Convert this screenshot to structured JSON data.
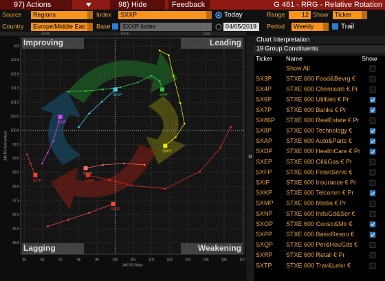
{
  "toolbar": {
    "actions": "97) Actions",
    "hide": "98) Hide",
    "feedback": "Feedback",
    "title": "G 461 - RRG - Relative Rotation"
  },
  "controls": {
    "source_label": "Source",
    "source": "Regions",
    "index_label": "Index",
    "index": "SXXP",
    "today": "Today",
    "range_label": "Range",
    "range": 12,
    "show_label": "Show",
    "show": "Ticker",
    "country_label": "Country",
    "country": "Europe/Middle Eas",
    "base_label": "Base",
    "base": "SXXP Index",
    "date": "04/05/2019",
    "period_label": "Period",
    "period": "Weekly",
    "trail": "Trail",
    "zoom": "Zoom",
    "track": "Track",
    "copy": "Copy"
  },
  "chart_data": {
    "type": "scatter",
    "quadrants": [
      "Improving",
      "Leading",
      "Lagging",
      "Weakening"
    ],
    "x_label": "JdK RS-Ratio",
    "y_label": "JdK RS-Momentum",
    "xlim": [
      94.8,
      107.1
    ],
    "ylim": [
      95.6,
      103.3
    ],
    "xticks": [
      95,
      96,
      97,
      98,
      99,
      100,
      101,
      102,
      103,
      104,
      105,
      106,
      107
    ],
    "yticks": [
      {
        "value": 96,
        "label": "96.0"
      },
      96.5,
      {
        "value": 97,
        "label": "97.0"
      },
      97.5,
      {
        "value": 98,
        "label": "98.0"
      },
      98.5,
      {
        "value": 99,
        "label": "99.0"
      },
      99.5,
      {
        "value": 100,
        "label": "100.0"
      },
      100.5,
      {
        "value": 101,
        "label": "101.0"
      },
      101.5,
      {
        "value": 102,
        "label": "102.0"
      },
      102.5,
      103
    ],
    "grid": true,
    "series": [
      {
        "name": "SX6P",
        "color": "#2ecc40",
        "x": [
          97.43,
          98.38,
          99.33,
          100.29,
          101.24,
          102.0,
          102.45,
          102.6
        ],
        "y": [
          101.39,
          101.41,
          101.46,
          101.54,
          101.71,
          101.95,
          101.76,
          101.46
        ]
      },
      {
        "name": "SX7P",
        "color": "#ff3b30",
        "x": [
          95.15,
          95.34,
          95.61
        ],
        "y": [
          99.15,
          98.83,
          98.41
        ]
      },
      {
        "name": "SX8P",
        "color": "#e040fb",
        "x": [
          95.99,
          96.29,
          96.6,
          96.98
        ],
        "y": [
          98.83,
          99.22,
          99.63,
          100.49
        ]
      },
      {
        "name": "SXAP",
        "color": "#3ad1e8",
        "x": [
          98.0,
          98.57,
          99.26,
          100.02
        ],
        "y": [
          100.12,
          100.61,
          101.02,
          101.46
        ]
      },
      {
        "name": "SXDP",
        "color": "#ff4a3a",
        "x": [
          96.29,
          97.43,
          98.57,
          99.9
        ],
        "y": [
          96.59,
          96.83,
          97.07,
          97.39
        ]
      },
      {
        "name": "SXKP",
        "color": "#f2e600",
        "x": [
          102.45,
          102.95,
          103.21,
          103.59,
          103.82,
          103.33,
          102.76
        ],
        "y": [
          102.85,
          102.68,
          101.95,
          100.98,
          100.24,
          99.76,
          99.46
        ]
      },
      {
        "name": "SXOP",
        "color": "#ff6f61",
        "x": [
          101.62,
          100.48,
          99.33,
          98.38
        ],
        "y": [
          98.78,
          98.83,
          98.78,
          98.66
        ]
      },
      {
        "name": "SXPP",
        "color": "#e8321f",
        "x": [
          106.37,
          105.8,
          104.66,
          102.76,
          100.86,
          99.71,
          98.5
        ],
        "y": [
          100.12,
          99.39,
          98.54,
          97.93,
          98.05,
          98.24,
          98.41
        ]
      }
    ]
  },
  "panel": {
    "title": "Chart Interpretation",
    "subtitle": "19 Group Constituents",
    "headers": [
      "Ticker",
      "Name",
      "Show"
    ],
    "rows": [
      {
        "name": "Show All",
        "show": false
      },
      {
        "ticker": "SX3P",
        "name": "STXE 600 Food&Bevrg €",
        "show": false
      },
      {
        "ticker": "SX4P",
        "name": "STXE 600 Chemicals € Pr",
        "show": false
      },
      {
        "ticker": "SX6P",
        "name": "STXE 600 Utilities € Pr",
        "show": true
      },
      {
        "ticker": "SX7P",
        "name": "STXE 600 Banks € Pr",
        "show": true
      },
      {
        "ticker": "SX86P",
        "name": "STXE 600 RealEstate € Pr",
        "show": false
      },
      {
        "ticker": "SX8P",
        "name": "STXE 600 Technology €",
        "show": true
      },
      {
        "ticker": "SXAP",
        "name": "STXE 600 Auto&Parts €",
        "show": true
      },
      {
        "ticker": "SXDP",
        "name": "STXE 600 HealthCare € Pr",
        "show": true
      },
      {
        "ticker": "SXEP",
        "name": "STXE 600 Oil&Gas € Pr",
        "show": false
      },
      {
        "ticker": "SXFP",
        "name": "STXE 600 FinanServc €",
        "show": false
      },
      {
        "ticker": "SXIP",
        "name": "STXE 600 Insurance € Pr",
        "show": false
      },
      {
        "ticker": "SXKP",
        "name": "STXE 600 Telcomm € Pr",
        "show": true
      },
      {
        "ticker": "SXMP",
        "name": "STXE 600 Media € Pr",
        "show": false
      },
      {
        "ticker": "SXNP",
        "name": "STXE 600 InduGd&Ser €",
        "show": false
      },
      {
        "ticker": "SXOP",
        "name": "STXE 600 Constr&Mtr €",
        "show": true
      },
      {
        "ticker": "SXPP",
        "name": "STXE 600 BasicResou €",
        "show": true
      },
      {
        "ticker": "SXQP",
        "name": "STXE 600 Per&HouGds €",
        "show": false
      },
      {
        "ticker": "SXRP",
        "name": "STXE 600 Retail € Pr",
        "show": false
      },
      {
        "ticker": "SXTP",
        "name": "STXE 600 Trav&Leisr €",
        "show": false
      }
    ]
  }
}
